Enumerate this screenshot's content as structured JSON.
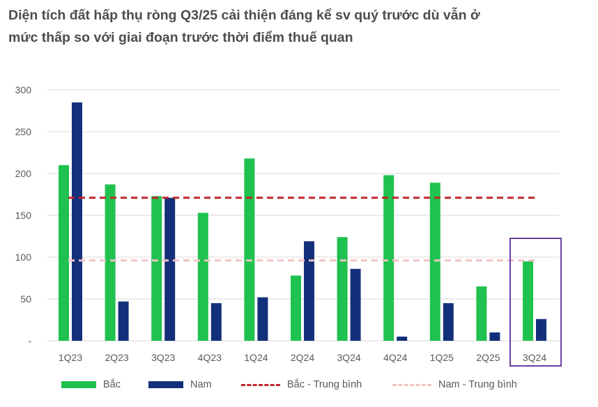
{
  "title_lines": [
    "Diện tích đất hấp thụ ròng Q3/25 cải thiện đáng kể sv quý trước dù vẫn ở",
    "mức thấp so với giai đoạn trước thời điểm thuế quan"
  ],
  "colors": {
    "bac": "#1fc24f",
    "nam": "#13307a",
    "bac_avg": "#c0262b",
    "nam_avg": "#f2c2c2",
    "grid": "#d9d9d9",
    "highlight": "#6b3fa0"
  },
  "chart_data": {
    "type": "bar",
    "title": "Diện tích đất hấp thụ ròng Q3/25 cải thiện đáng kể sv quý trước dù vẫn ở mức thấp so với giai đoạn trước thời điểm thuế quan",
    "categories": [
      "1Q23",
      "2Q23",
      "3Q23",
      "4Q23",
      "1Q24",
      "2Q24",
      "3Q24",
      "4Q24",
      "1Q25",
      "2Q25",
      "3Q24"
    ],
    "series": [
      {
        "name": "Bắc",
        "values": [
          210,
          187,
          173,
          153,
          218,
          78,
          124,
          198,
          189,
          65,
          95
        ]
      },
      {
        "name": "Nam",
        "values": [
          285,
          47,
          171,
          45,
          52,
          119,
          86,
          5,
          45,
          10,
          26
        ]
      }
    ],
    "reference_lines": [
      {
        "name": "Bắc - Trung bình",
        "value": 171
      },
      {
        "name": "Nam - Trung bình",
        "value": 96
      }
    ],
    "y_ticks": [
      0,
      50,
      100,
      150,
      200,
      250,
      300
    ],
    "y_tick_labels": [
      "-",
      "50",
      "100",
      "150",
      "200",
      "250",
      "300"
    ],
    "ylim": [
      0,
      300
    ],
    "grid": true,
    "legend_position": "bottom",
    "highlighted_category": "3Q24",
    "xlabel": "",
    "ylabel": ""
  },
  "legend": {
    "bac": "Bắc",
    "nam": "Nam",
    "bac_avg": "Bắc - Trung bình",
    "nam_avg": "Nam - Trung bình"
  }
}
